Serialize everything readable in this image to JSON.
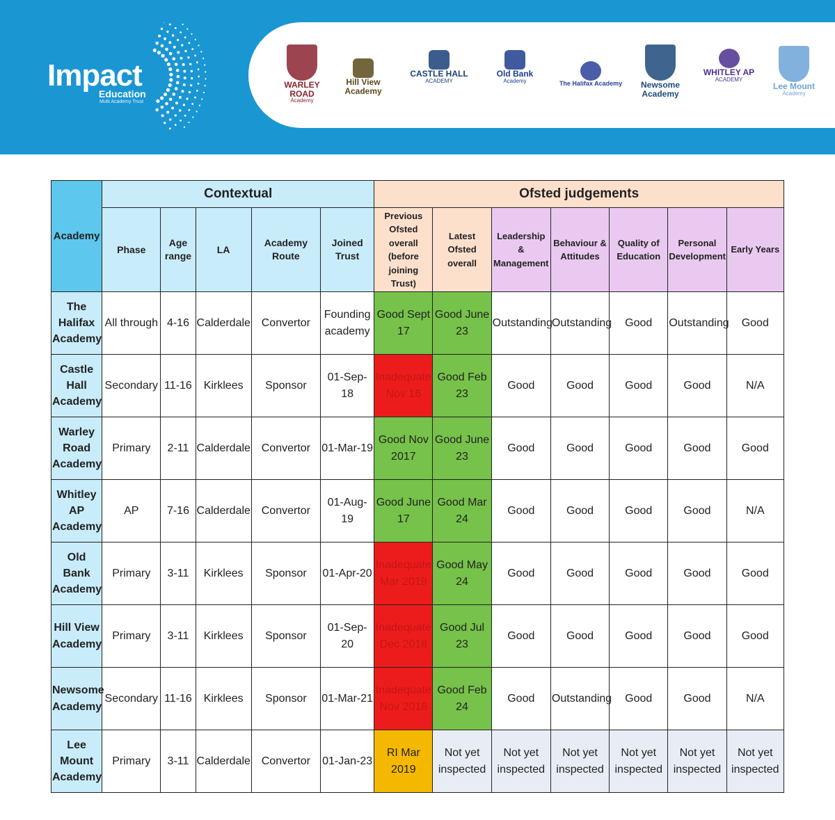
{
  "header": {
    "brand": {
      "name": "Impact",
      "sub": "Education",
      "sub2": "Multi Academy Trust"
    },
    "schools": [
      {
        "name": "WARLEY ROAD",
        "tag": "Academy",
        "icon": "shield-icon",
        "color": "#8b2331"
      },
      {
        "name": "Hill View Academy",
        "tag": "",
        "icon": "bee-icon",
        "color": "#5a4a1a"
      },
      {
        "name": "CASTLE HALL",
        "tag": "ACADEMY",
        "icon": "castle-icon",
        "color": "#1a3f7a"
      },
      {
        "name": "Old Bank",
        "tag": "Academy",
        "icon": "tree-icon",
        "color": "#1e3d8f"
      },
      {
        "name": "The Halifax Academy",
        "tag": "",
        "icon": "circles-icon",
        "color": "#2c3f9a"
      },
      {
        "name": "Newsome Academy",
        "tag": "",
        "icon": "crest-icon",
        "color": "#1d4a7a"
      },
      {
        "name": "WHITLEY AP",
        "tag": "ACADEMY",
        "icon": "ring-icon",
        "color": "#4b2f8f"
      },
      {
        "name": "Lee Mount",
        "tag": "Academy",
        "icon": "shield-icon",
        "color": "#6ba3d6"
      }
    ]
  },
  "table": {
    "group_headers": {
      "academy": "Academy",
      "contextual": "Contextual",
      "ofsted": "Ofsted judgements"
    },
    "columns": {
      "phase": "Phase",
      "age": "Age range",
      "la": "LA",
      "route": "Academy Route",
      "joined": "Joined Trust",
      "previous": "Previous Ofsted overall (before joining Trust)",
      "latest": "Latest Ofsted overall",
      "leadership": "Leadership & Management",
      "behaviour": "Behaviour & Attitudes",
      "quality": "Quality of Education",
      "personal": "Personal Development",
      "early": "Early Years"
    },
    "rows": [
      {
        "academy": "The Halifax Academy",
        "phase": "All through",
        "age": "4-16",
        "la": "Calderdale",
        "route": "Convertor",
        "joined": "Founding academy",
        "previous": "Good Sept 17",
        "previous_status": "green",
        "latest": "Good June 23",
        "latest_status": "green",
        "leadership": "Outstanding",
        "behaviour": "Outstanding",
        "quality": "Good",
        "personal": "Outstanding",
        "early": "Good"
      },
      {
        "academy": "Castle Hall Academy",
        "phase": "Secondary",
        "age": "11-16",
        "la": "Kirklees",
        "route": "Sponsor",
        "joined": "01-Sep-18",
        "previous": "Inadequate Nov 16",
        "previous_status": "red",
        "latest": "Good Feb 23",
        "latest_status": "green",
        "leadership": "Good",
        "behaviour": "Good",
        "quality": "Good",
        "personal": "Good",
        "early": "N/A"
      },
      {
        "academy": "Warley Road Academy",
        "phase": "Primary",
        "age": "2-11",
        "la": "Calderdale",
        "route": "Convertor",
        "joined": "01-Mar-19",
        "previous": "Good Nov 2017",
        "previous_status": "green",
        "latest": "Good June 23",
        "latest_status": "green",
        "leadership": "Good",
        "behaviour": "Good",
        "quality": "Good",
        "personal": "Good",
        "early": "Good"
      },
      {
        "academy": "Whitley AP Academy",
        "phase": "AP",
        "age": "7-16",
        "la": "Calderdale",
        "route": "Convertor",
        "joined": "01-Aug-19",
        "previous": "Good June 17",
        "previous_status": "green",
        "latest": "Good Mar 24",
        "latest_status": "green",
        "leadership": "Good",
        "behaviour": "Good",
        "quality": "Good",
        "personal": "Good",
        "early": "N/A"
      },
      {
        "academy": "Old Bank Academy",
        "phase": "Primary",
        "age": "3-11",
        "la": "Kirklees",
        "route": "Sponsor",
        "joined": "01-Apr-20",
        "previous": "Inadequate Mar 2019",
        "previous_status": "red",
        "latest": "Good May 24",
        "latest_status": "green",
        "leadership": "Good",
        "behaviour": "Good",
        "quality": "Good",
        "personal": "Good",
        "early": "Good"
      },
      {
        "academy": "Hill View Academy",
        "phase": "Primary",
        "age": "3-11",
        "la": "Kirklees",
        "route": "Sponsor",
        "joined": "01-Sep-20",
        "previous": "Inadequate Dec 2018",
        "previous_status": "red",
        "latest": "Good Jul 23",
        "latest_status": "green",
        "leadership": "Good",
        "behaviour": "Good",
        "quality": "Good",
        "personal": "Good",
        "early": "Good"
      },
      {
        "academy": "Newsome Academy",
        "phase": "Secondary",
        "age": "11-16",
        "la": "Kirklees",
        "route": "Sponsor",
        "joined": "01-Mar-21",
        "previous": "Inadequate Nov 2018",
        "previous_status": "red",
        "latest": "Good Feb 24",
        "latest_status": "green",
        "leadership": "Good",
        "behaviour": "Outstanding",
        "quality": "Good",
        "personal": "Good",
        "early": "N/A"
      },
      {
        "academy": "Lee Mount Academy",
        "phase": "Primary",
        "age": "3-11",
        "la": "Calderdale",
        "route": "Convertor",
        "joined": "01-Jan-23",
        "previous": "RI Mar 2019",
        "previous_status": "amber",
        "latest": "Not yet inspected",
        "latest_status": "grey",
        "leadership": "Not yet inspected",
        "behaviour": "Not yet inspected",
        "quality": "Not yet inspected",
        "personal": "Not yet inspected",
        "early": "Not yet inspected"
      }
    ]
  }
}
